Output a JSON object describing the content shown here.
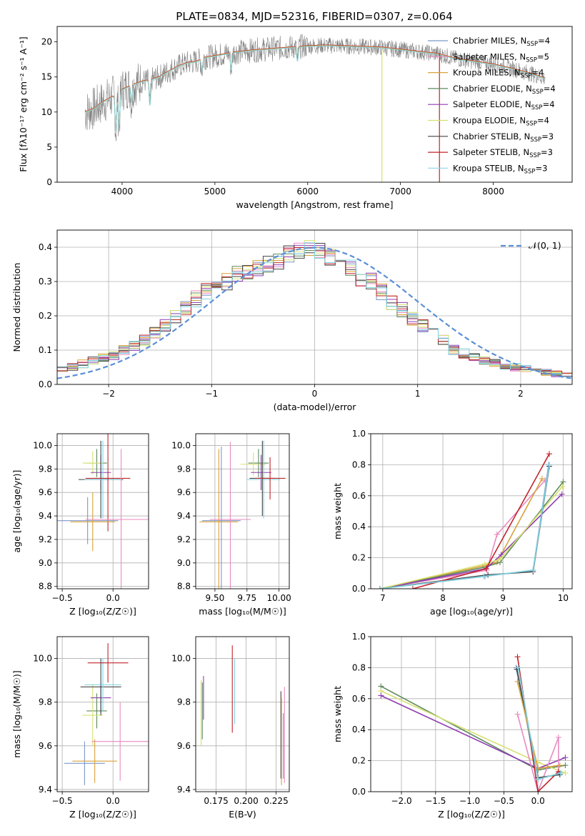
{
  "figure_title": "PLATE=0834, MJD=52316, FIBERID=0307, z=0.064",
  "colors": [
    "#7b97c9",
    "#e88ac0",
    "#d9a23a",
    "#5d8a5d",
    "#8e3db0",
    "#d6e070",
    "#444444",
    "#c0252b",
    "#7fd3e0"
  ],
  "chart_data": [
    {
      "id": "spectrum",
      "type": "line",
      "title": "PLATE=0834, MJD=52316, FIBERID=0307, z=0.064",
      "xlabel": "wavelength [Angstrom, rest frame]",
      "ylabel": "Flux [fλ10⁻¹⁷ erg cm⁻² s⁻¹ A⁻¹]",
      "xlim": [
        3300,
        8850
      ],
      "ylim": [
        0,
        22.2
      ],
      "xticks": [
        "4000",
        "5000",
        "6000",
        "7000",
        "8000"
      ],
      "yticks": [
        "0",
        "5",
        "10",
        "15",
        "20"
      ],
      "legend": [
        {
          "name": "Chabrier MILES, N",
          "sub": "SSP",
          "val": "=4",
          "color": "#7b97c9"
        },
        {
          "name": "Salpeter MILES, N",
          "sub": "SSP",
          "val": "=5",
          "color": "#e88ac0"
        },
        {
          "name": "Kroupa MILES, N",
          "sub": "SSP",
          "val": "=4",
          "color": "#d9a23a"
        },
        {
          "name": "Chabrier ELODIE, N",
          "sub": "SSP",
          "val": "=4",
          "color": "#5d8a5d"
        },
        {
          "name": "Salpeter ELODIE, N",
          "sub": "SSP",
          "val": "=4",
          "color": "#8e3db0"
        },
        {
          "name": "Kroupa ELODIE, N",
          "sub": "SSP",
          "val": "=4",
          "color": "#d6e070"
        },
        {
          "name": "Chabrier STELIB, N",
          "sub": "SSP",
          "val": "=3",
          "color": "#444444"
        },
        {
          "name": "Salpeter STELIB, N",
          "sub": "SSP",
          "val": "=3",
          "color": "#c0252b"
        },
        {
          "name": "Kroupa STELIB, N",
          "sub": "SSP",
          "val": "=3",
          "color": "#9fd8ea"
        }
      ],
      "continuum": [
        [
          3600,
          10
        ],
        [
          3700,
          10.5
        ],
        [
          3800,
          11.5
        ],
        [
          3900,
          12.2
        ],
        [
          4000,
          13.2
        ],
        [
          4100,
          13.8
        ],
        [
          4200,
          14.3
        ],
        [
          4300,
          14.6
        ],
        [
          4400,
          15
        ],
        [
          4500,
          15.8
        ],
        [
          4600,
          16.5
        ],
        [
          4700,
          17
        ],
        [
          4800,
          17.2
        ],
        [
          4900,
          17.8
        ],
        [
          5000,
          18
        ],
        [
          5200,
          18.5
        ],
        [
          5400,
          18.8
        ],
        [
          5600,
          19
        ],
        [
          5800,
          19.2
        ],
        [
          6000,
          19.4
        ],
        [
          6200,
          19.5
        ],
        [
          6400,
          19.4
        ],
        [
          6600,
          19.3
        ],
        [
          6800,
          19.2
        ],
        [
          7000,
          18.9
        ],
        [
          7200,
          18.6
        ],
        [
          7400,
          18.3
        ],
        [
          7600,
          17.6
        ],
        [
          7800,
          17.2
        ],
        [
          8000,
          16.8
        ],
        [
          8200,
          16.2
        ],
        [
          8400,
          15.5
        ],
        [
          8560,
          14.8
        ]
      ],
      "absorption": [
        [
          3933,
          6.5
        ],
        [
          3968,
          6
        ],
        [
          4102,
          3
        ],
        [
          4300,
          4.5
        ],
        [
          4861,
          2
        ],
        [
          5175,
          3
        ],
        [
          5890,
          2.5
        ]
      ]
    },
    {
      "id": "residuals",
      "type": "line",
      "xlabel": "(data-model)/error",
      "ylabel": "Normed distribution",
      "xlim": [
        -2.5,
        2.5
      ],
      "ylim": [
        0,
        0.45
      ],
      "xticks": [
        "−2",
        "−1",
        "0",
        "1",
        "2"
      ],
      "yticks": [
        "0.0",
        "0.1",
        "0.2",
        "0.3",
        "0.4"
      ],
      "legend_label": "𝒩(0, 1)",
      "step_hist": [
        0.045,
        0.05,
        0.06,
        0.07,
        0.08,
        0.085,
        0.1,
        0.11,
        0.13,
        0.15,
        0.17,
        0.2,
        0.22,
        0.25,
        0.27,
        0.3,
        0.3,
        0.32,
        0.33,
        0.34,
        0.35,
        0.36,
        0.38,
        0.39,
        0.4,
        0.39,
        0.37,
        0.35,
        0.34,
        0.31,
        0.3,
        0.27,
        0.24,
        0.22,
        0.19,
        0.17,
        0.15,
        0.13,
        0.1,
        0.09,
        0.08,
        0.07,
        0.065,
        0.055,
        0.05,
        0.045,
        0.04,
        0.035,
        0.03,
        0.025
      ]
    },
    {
      "id": "age-vs-z",
      "type": "scatter",
      "xlabel": "Z [log₁₀(Z/Z☉)]",
      "ylabel": "age  [log₁₀(age/yr)]",
      "xlim": [
        -0.55,
        0.35
      ],
      "ylim": [
        8.78,
        10.1
      ],
      "xticks": [
        "−0.5",
        "0.0"
      ],
      "yticks": [
        "8.8",
        "9.0",
        "9.2",
        "9.4",
        "9.6",
        "9.8",
        "10.0"
      ],
      "points": [
        {
          "x": -0.16,
          "y": 9.85,
          "xe": 0.1,
          "ye": 0.12,
          "c": "#5d8a5d"
        },
        {
          "x": -0.2,
          "y": 9.85,
          "xe": 0.1,
          "ye": 0.1,
          "c": "#d6e070"
        },
        {
          "x": -0.12,
          "y": 9.77,
          "xe": 0.1,
          "ye": 0.15,
          "c": "#8e3db0"
        },
        {
          "x": -0.12,
          "y": 9.71,
          "xe": 0.22,
          "ye": 0.33,
          "c": "#444444"
        },
        {
          "x": -0.1,
          "y": 9.71,
          "xe": 0.18,
          "ye": 0.33,
          "c": "#7fd3e0"
        },
        {
          "x": -0.05,
          "y": 9.72,
          "xe": 0.22,
          "ye": 0.45,
          "c": "#c0252b"
        },
        {
          "x": -0.25,
          "y": 9.36,
          "xe": 0.3,
          "ye": 0.2,
          "c": "#7b97c9"
        },
        {
          "x": -0.2,
          "y": 9.35,
          "xe": 0.22,
          "ye": 0.25,
          "c": "#d9a23a"
        },
        {
          "x": 0.08,
          "y": 9.37,
          "xe": 0.35,
          "ye": 0.6,
          "c": "#e88ac0"
        }
      ]
    },
    {
      "id": "age-vs-mass",
      "type": "scatter",
      "xlabel": "mass [log₁₀(M/M☉)]",
      "ylabel": "",
      "xlim": [
        9.35,
        10.08
      ],
      "ylim": [
        8.78,
        10.1
      ],
      "xticks": [
        "9.50",
        "9.75",
        "10.00"
      ],
      "yticks": [
        "8.8",
        "9.0",
        "9.2",
        "9.4",
        "9.6",
        "9.8",
        "10.0"
      ],
      "points": [
        {
          "x": 9.84,
          "y": 9.85,
          "xe": 0.08,
          "ye": 0.12,
          "c": "#5d8a5d"
        },
        {
          "x": 9.8,
          "y": 9.84,
          "xe": 0.1,
          "ye": 0.1,
          "c": "#d6e070"
        },
        {
          "x": 9.86,
          "y": 9.77,
          "xe": 0.08,
          "ye": 0.15,
          "c": "#8e3db0"
        },
        {
          "x": 9.88,
          "y": 9.71,
          "xe": 0.13,
          "ye": 0.33,
          "c": "#7fd3e0"
        },
        {
          "x": 9.87,
          "y": 9.72,
          "xe": 0.1,
          "ye": 0.32,
          "c": "#444444"
        },
        {
          "x": 9.93,
          "y": 9.72,
          "xe": 0.12,
          "ye": 0.18,
          "c": "#c0252b"
        },
        {
          "x": 9.55,
          "y": 9.36,
          "xe": 0.15,
          "ye": 0.63,
          "c": "#7b97c9"
        },
        {
          "x": 9.53,
          "y": 9.35,
          "xe": 0.15,
          "ye": 0.62,
          "c": "#d9a23a"
        },
        {
          "x": 9.62,
          "y": 9.37,
          "xe": 0.16,
          "ye": 0.66,
          "c": "#e88ac0"
        }
      ]
    },
    {
      "id": "weight-vs-age",
      "type": "line",
      "xlabel": "age  [log₁₀(age/yr)]",
      "ylabel": "mass weight",
      "xlim": [
        6.8,
        10.15
      ],
      "ylim": [
        0,
        1
      ],
      "xticks": [
        "7",
        "8",
        "9",
        "10"
      ],
      "yticks": [
        "0.0",
        "0.2",
        "0.4",
        "0.6",
        "0.8",
        "1.0"
      ],
      "series": [
        {
          "c": "#7b97c9",
          "x": [
            6.95,
            8.7,
            9.5,
            9.76
          ],
          "y": [
            0.0,
            0.08,
            0.12,
            0.8
          ]
        },
        {
          "c": "#e88ac0",
          "x": [
            6.95,
            8.73,
            8.9,
            9.7
          ],
          "y": [
            0.0,
            0.12,
            0.35,
            0.7
          ]
        },
        {
          "c": "#d9a23a",
          "x": [
            6.95,
            8.7,
            8.9,
            9.65
          ],
          "y": [
            0.0,
            0.15,
            0.17,
            0.71
          ]
        },
        {
          "c": "#5d8a5d",
          "x": [
            6.95,
            8.7,
            8.95,
            10.0
          ],
          "y": [
            0.0,
            0.14,
            0.17,
            0.69
          ]
        },
        {
          "c": "#8e3db0",
          "x": [
            6.95,
            8.72,
            8.97,
            9.98
          ],
          "y": [
            0.0,
            0.13,
            0.22,
            0.61
          ]
        },
        {
          "c": "#d6e070",
          "x": [
            6.95,
            8.7,
            8.95,
            9.99
          ],
          "y": [
            0.0,
            0.16,
            0.19,
            0.66
          ]
        },
        {
          "c": "#444444",
          "x": [
            6.95,
            8.75,
            9.5,
            9.77
          ],
          "y": [
            0.0,
            0.09,
            0.11,
            0.79
          ]
        },
        {
          "c": "#c0252b",
          "x": [
            7.5,
            8.72,
            9.77
          ],
          "y": [
            0.0,
            0.13,
            0.87
          ]
        },
        {
          "c": "#7fd3e0",
          "x": [
            6.95,
            8.68,
            9.5,
            9.77
          ],
          "y": [
            0.0,
            0.08,
            0.12,
            0.8
          ]
        }
      ]
    },
    {
      "id": "mass-vs-z",
      "type": "scatter",
      "xlabel": "Z [log₁₀(Z/Z☉)]",
      "ylabel": "mass [log₁₀(M/M☉)]",
      "xlim": [
        -0.55,
        0.35
      ],
      "ylim": [
        9.39,
        10.1
      ],
      "xticks": [
        "−0.5",
        "0.0"
      ],
      "yticks": [
        "9.4",
        "9.6",
        "9.8",
        "10.0"
      ],
      "points": [
        {
          "x": -0.16,
          "y": 9.76,
          "xe": 0.1,
          "ye": 0.08,
          "c": "#5d8a5d"
        },
        {
          "x": -0.2,
          "y": 9.74,
          "xe": 0.1,
          "ye": 0.14,
          "c": "#d6e070"
        },
        {
          "x": -0.12,
          "y": 9.82,
          "xe": 0.1,
          "ye": 0.07,
          "c": "#8e3db0"
        },
        {
          "x": -0.12,
          "y": 9.87,
          "xe": 0.2,
          "ye": 0.13,
          "c": "#444444"
        },
        {
          "x": -0.1,
          "y": 9.88,
          "xe": 0.18,
          "ye": 0.12,
          "c": "#7fd3e0"
        },
        {
          "x": -0.05,
          "y": 9.98,
          "xe": 0.2,
          "ye": 0.09,
          "c": "#c0252b"
        },
        {
          "x": -0.28,
          "y": 9.52,
          "xe": 0.2,
          "ye": 0.1,
          "c": "#7b97c9"
        },
        {
          "x": -0.18,
          "y": 9.53,
          "xe": 0.22,
          "ye": 0.1,
          "c": "#d9a23a"
        },
        {
          "x": 0.07,
          "y": 9.62,
          "xe": 0.28,
          "ye": 0.18,
          "c": "#e88ac0"
        }
      ]
    },
    {
      "id": "mass-vs-ebv",
      "type": "scatter",
      "xlabel": "E(B-V)",
      "ylabel": "",
      "xlim": [
        0.158,
        0.236
      ],
      "ylim": [
        9.39,
        10.1
      ],
      "xticks": [
        "0.175",
        "0.200",
        "0.225"
      ],
      "yticks": [
        "9.4",
        "9.6",
        "9.8",
        "10.0"
      ],
      "points": [
        {
          "x": 0.1625,
          "y": 9.75,
          "ye": 0.15,
          "c": "#d6e070"
        },
        {
          "x": 0.1635,
          "y": 9.76,
          "ye": 0.13,
          "c": "#5d8a5d"
        },
        {
          "x": 0.1645,
          "y": 9.82,
          "ye": 0.1,
          "c": "#8e3db0"
        },
        {
          "x": 0.1885,
          "y": 9.86,
          "ye": 0.2,
          "c": "#c0252b"
        },
        {
          "x": 0.1905,
          "y": 9.85,
          "ye": 0.15,
          "c": "#7fd3e0"
        },
        {
          "x": 0.229,
          "y": 9.65,
          "ye": 0.2,
          "c": "#444444"
        },
        {
          "x": 0.2295,
          "y": 9.62,
          "ye": 0.2,
          "c": "#d9a23a"
        },
        {
          "x": 0.231,
          "y": 9.6,
          "ye": 0.15,
          "c": "#7b97c9"
        },
        {
          "x": 0.232,
          "y": 9.65,
          "ye": 0.22,
          "c": "#e88ac0"
        }
      ]
    },
    {
      "id": "weight-vs-z",
      "type": "line",
      "xlabel": "Z [log₁₀(Z/Z☉)]",
      "ylabel": "mass weight",
      "xlim": [
        -2.45,
        0.5
      ],
      "ylim": [
        0,
        1
      ],
      "xticks": [
        "−2.0",
        "−1.5",
        "−1.0",
        "−0.5",
        "0.0"
      ],
      "yticks": [
        "0.0",
        "0.2",
        "0.4",
        "0.6",
        "0.8",
        "1.0"
      ],
      "series": [
        {
          "c": "#5d8a5d",
          "x": [
            -2.3,
            0.0,
            0.4
          ],
          "y": [
            0.68,
            0.14,
            0.17
          ]
        },
        {
          "c": "#d6e070",
          "x": [
            -2.3,
            0.0,
            0.4
          ],
          "y": [
            0.65,
            0.19,
            0.12
          ]
        },
        {
          "c": "#8e3db0",
          "x": [
            -2.3,
            0.0,
            0.4
          ],
          "y": [
            0.62,
            0.15,
            0.22
          ]
        },
        {
          "c": "#e88ac0",
          "x": [
            -0.3,
            0.0,
            0.3,
            0.3
          ],
          "y": [
            0.5,
            0.0,
            0.35,
            0.12
          ]
        },
        {
          "c": "#c0252b",
          "x": [
            -0.3,
            0.0,
            0.3
          ],
          "y": [
            0.87,
            0.0,
            0.13
          ]
        },
        {
          "c": "#7b97c9",
          "x": [
            -0.32,
            0.0,
            0.33
          ],
          "y": [
            0.8,
            0.08,
            0.12
          ]
        },
        {
          "c": "#444444",
          "x": [
            -0.31,
            0.0,
            0.32
          ],
          "y": [
            0.79,
            0.09,
            0.11
          ]
        },
        {
          "c": "#d9a23a",
          "x": [
            -0.3,
            0.0,
            0.32
          ],
          "y": [
            0.71,
            0.15,
            0.17
          ]
        },
        {
          "c": "#7fd3e0",
          "x": [
            -0.29,
            0.0,
            0.33
          ],
          "y": [
            0.8,
            0.08,
            0.12
          ]
        }
      ]
    }
  ]
}
